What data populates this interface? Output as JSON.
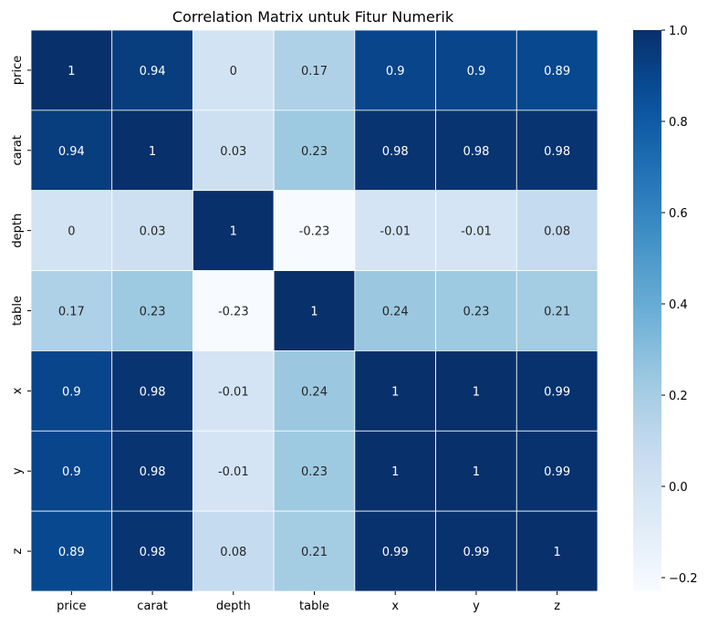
{
  "chart_data": {
    "type": "heatmap",
    "title": "Correlation Matrix untuk Fitur Numerik",
    "xlabel": "",
    "ylabel": "",
    "x_categories": [
      "price",
      "carat",
      "depth",
      "table",
      "x",
      "y",
      "z"
    ],
    "y_categories": [
      "price",
      "carat",
      "depth",
      "table",
      "x",
      "y",
      "z"
    ],
    "values": [
      [
        1,
        0.94,
        0,
        0.17,
        0.9,
        0.9,
        0.89
      ],
      [
        0.94,
        1,
        0.03,
        0.23,
        0.98,
        0.98,
        0.98
      ],
      [
        0,
        0.03,
        1,
        -0.23,
        -0.01,
        -0.01,
        0.08
      ],
      [
        0.17,
        0.23,
        -0.23,
        1,
        0.24,
        0.23,
        0.21
      ],
      [
        0.9,
        0.98,
        -0.01,
        0.24,
        1,
        1,
        0.99
      ],
      [
        0.9,
        0.98,
        -0.01,
        0.23,
        1,
        1,
        0.99
      ],
      [
        0.89,
        0.98,
        0.08,
        0.21,
        0.99,
        0.99,
        1
      ]
    ],
    "colorbar": {
      "colormap": "Blues",
      "vmin": -0.23,
      "vmax": 1.0,
      "ticks": [
        -0.2,
        0.0,
        0.2,
        0.4,
        0.6,
        0.8,
        1.0
      ],
      "tick_labels": [
        "−0.2",
        "0.0",
        "0.2",
        "0.4",
        "0.6",
        "0.8",
        "1.0"
      ]
    },
    "annotations": true,
    "cell_border_color": "#ffffff"
  }
}
